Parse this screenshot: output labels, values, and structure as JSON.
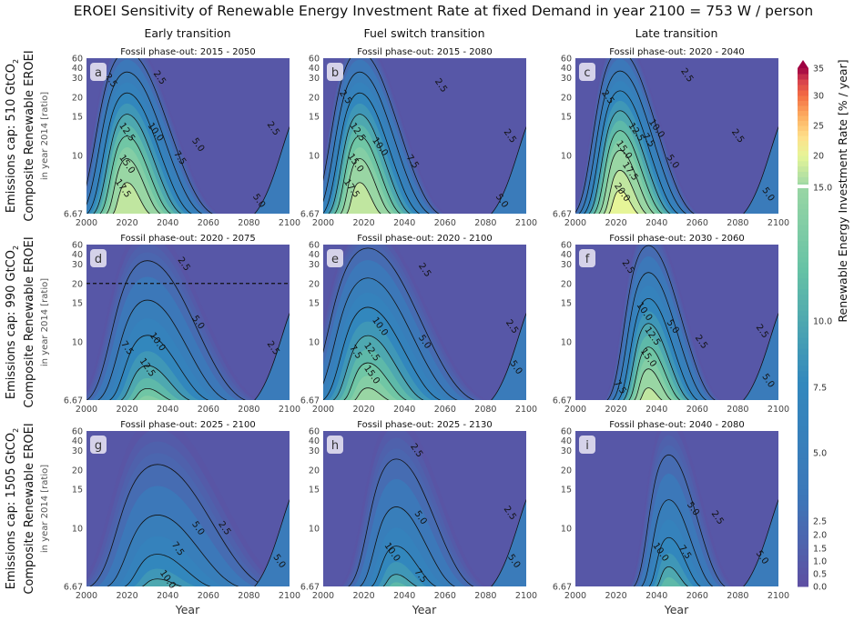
{
  "chart_data": {
    "type": "heatmap",
    "title": "EROEI Sensitivity of Renewable Energy Investment Rate at fixed Demand in year 2100 = 753 W / person",
    "column_titles": [
      "Early transition",
      "Fuel switch transition",
      "Late transition"
    ],
    "row_labels": [
      {
        "cap": "Emissions cap: 510 GtCO",
        "sub": "2",
        "ylabel": "Composite Renewable EROEI",
        "ysub": "in year 2014 [ratio]"
      },
      {
        "cap": "Emissions cap: 990 GtCO",
        "sub": "2",
        "ylabel": "Composite Renewable EROEI",
        "ysub": "in year 2014 [ratio]"
      },
      {
        "cap": "Emissions cap: 1505 GtCO",
        "sub": "2",
        "ylabel": "Composite Renewable EROEI",
        "ysub": "in year 2014 [ratio]"
      }
    ],
    "xlabel": "Year",
    "x_ticks": [
      "2000",
      "2020",
      "2040",
      "2060",
      "2080",
      "2100"
    ],
    "y_ticks": [
      "6.67",
      "10",
      "15",
      "20",
      "30",
      "40",
      "60"
    ],
    "y_tick_values": [
      6.67,
      10,
      15,
      20,
      30,
      40,
      60
    ],
    "xlim": [
      2000,
      2100
    ],
    "ylim": [
      6.67,
      60
    ],
    "yscale": "reciprocal",
    "colorbar": {
      "label": "Renewable Energy Investment Rate [% / year]",
      "ticks": [
        "0.0",
        "0.5",
        "1.0",
        "1.5",
        "2.0",
        "2.5",
        "5.0",
        "7.5",
        "10.0",
        "15.0",
        "20",
        "25",
        "30",
        "35"
      ],
      "position": "right"
    },
    "panels": [
      {
        "letter": "a",
        "subtitle": "Fossil phase-out: 2015 - 2050",
        "peak_year": 2020,
        "peak_value": 20,
        "width_years": 14,
        "decay": 0.9,
        "contour_labels": [
          {
            "text": "2.5",
            "x": 2012,
            "y": 28
          },
          {
            "text": "2.5",
            "x": 2036,
            "y": 30
          },
          {
            "text": "2.5",
            "x": 2092,
            "y": 13
          },
          {
            "text": "5.0",
            "x": 2055,
            "y": 11
          },
          {
            "text": "5.0",
            "x": 2085,
            "y": 7.2
          },
          {
            "text": "7.5",
            "x": 2046,
            "y": 9.8
          },
          {
            "text": "10.0",
            "x": 2034,
            "y": 12.5
          },
          {
            "text": "12.5",
            "x": 2020,
            "y": 12.5
          },
          {
            "text": "15.0",
            "x": 2020,
            "y": 9.3
          },
          {
            "text": "17.5",
            "x": 2018,
            "y": 7.8
          }
        ]
      },
      {
        "letter": "b",
        "subtitle": "Fossil phase-out: 2015 - 2080",
        "peak_year": 2018,
        "peak_value": 20,
        "width_years": 13,
        "decay": 0.9,
        "contour_labels": [
          {
            "text": "2.5",
            "x": 2011,
            "y": 20
          },
          {
            "text": "2.5",
            "x": 2058,
            "y": 25
          },
          {
            "text": "2.5",
            "x": 2092,
            "y": 12
          },
          {
            "text": "5.0",
            "x": 2088,
            "y": 7.2
          },
          {
            "text": "7.5",
            "x": 2044,
            "y": 9.5
          },
          {
            "text": "10.0",
            "x": 2028,
            "y": 10.8
          },
          {
            "text": "12.5",
            "x": 2017,
            "y": 12.5
          },
          {
            "text": "15.0",
            "x": 2016,
            "y": 9.4
          },
          {
            "text": "17.5",
            "x": 2014,
            "y": 7.8
          }
        ]
      },
      {
        "letter": "c",
        "subtitle": "Fossil phase-out: 2020 - 2040",
        "peak_year": 2022,
        "peak_value": 22.5,
        "width_years": 12,
        "decay": 1.0,
        "contour_labels": [
          {
            "text": "2.5",
            "x": 2016,
            "y": 20
          },
          {
            "text": "2.5",
            "x": 2055,
            "y": 32
          },
          {
            "text": "2.5",
            "x": 2080,
            "y": 12
          },
          {
            "text": "5.0",
            "x": 2048,
            "y": 9.5
          },
          {
            "text": "5.0",
            "x": 2095,
            "y": 7.5
          },
          {
            "text": "7.5",
            "x": 2036,
            "y": 11.5
          },
          {
            "text": "10.0",
            "x": 2040,
            "y": 13
          },
          {
            "text": "12.5",
            "x": 2030,
            "y": 12.5
          },
          {
            "text": "15.0",
            "x": 2024,
            "y": 10.5
          },
          {
            "text": "17.5",
            "x": 2027,
            "y": 8.8
          },
          {
            "text": "20.0",
            "x": 2023,
            "y": 7.6
          }
        ]
      },
      {
        "letter": "d",
        "subtitle": "Fossil phase-out: 2020 - 2075",
        "peak_year": 2030,
        "peak_value": 14,
        "width_years": 17,
        "decay": 1.4,
        "dashed_line_y": 20,
        "contour_labels": [
          {
            "text": "2.5",
            "x": 2048,
            "y": 30
          },
          {
            "text": "2.5",
            "x": 2092,
            "y": 9.5
          },
          {
            "text": "5.0",
            "x": 2055,
            "y": 12
          },
          {
            "text": "7.5",
            "x": 2020,
            "y": 9.5
          },
          {
            "text": "10.0",
            "x": 2035,
            "y": 10
          },
          {
            "text": "12.5",
            "x": 2030,
            "y": 8.2
          }
        ]
      },
      {
        "letter": "e",
        "subtitle": "Fossil phase-out: 2020 - 2100",
        "peak_year": 2022,
        "peak_value": 16,
        "width_years": 18,
        "decay": 1.1,
        "contour_labels": [
          {
            "text": "2.5",
            "x": 2050,
            "y": 26
          },
          {
            "text": "2.5",
            "x": 2093,
            "y": 11.5
          },
          {
            "text": "5.0",
            "x": 2095,
            "y": 8.2
          },
          {
            "text": "5.0",
            "x": 2050,
            "y": 10
          },
          {
            "text": "7.5",
            "x": 2016,
            "y": 9.2
          },
          {
            "text": "10.0",
            "x": 2028,
            "y": 11.5
          },
          {
            "text": "12.5",
            "x": 2024,
            "y": 9.2
          },
          {
            "text": "15.0",
            "x": 2024,
            "y": 7.8
          }
        ]
      },
      {
        "letter": "f",
        "subtitle": "Fossil phase-out: 2030 - 2060",
        "peak_year": 2036,
        "peak_value": 19,
        "width_years": 11,
        "decay": 1.2,
        "contour_labels": [
          {
            "text": "2.5",
            "x": 2026,
            "y": 28
          },
          {
            "text": "2.5",
            "x": 2062,
            "y": 10
          },
          {
            "text": "2.5",
            "x": 2092,
            "y": 11
          },
          {
            "text": "5.0",
            "x": 2048,
            "y": 11.5
          },
          {
            "text": "5.0",
            "x": 2095,
            "y": 7.5
          },
          {
            "text": "7.5",
            "x": 2022,
            "y": 7.2
          },
          {
            "text": "10.0",
            "x": 2034,
            "y": 13.5
          },
          {
            "text": "12.5",
            "x": 2038,
            "y": 10.5
          },
          {
            "text": "15.0",
            "x": 2036,
            "y": 8.8
          }
        ]
      },
      {
        "letter": "g",
        "subtitle": "Fossil phase-out: 2025 - 2100",
        "peak_year": 2035,
        "peak_value": 11,
        "width_years": 20,
        "decay": 1.6,
        "contour_labels": [
          {
            "text": "2.5",
            "x": 2068,
            "y": 10
          },
          {
            "text": "5.0",
            "x": 2055,
            "y": 10
          },
          {
            "text": "5.0",
            "x": 2095,
            "y": 7.8
          },
          {
            "text": "7.5",
            "x": 2045,
            "y": 8.5
          },
          {
            "text": "10.0",
            "x": 2040,
            "y": 6.95
          }
        ]
      },
      {
        "letter": "h",
        "subtitle": "Fossil phase-out: 2025 - 2130",
        "peak_year": 2036,
        "peak_value": 11.5,
        "width_years": 14,
        "decay": 1.5,
        "contour_labels": [
          {
            "text": "2.5",
            "x": 2046,
            "y": 30
          },
          {
            "text": "2.5",
            "x": 2092,
            "y": 11.5
          },
          {
            "text": "5.0",
            "x": 2048,
            "y": 11
          },
          {
            "text": "5.0",
            "x": 2094,
            "y": 7.8
          },
          {
            "text": "7.5",
            "x": 2048,
            "y": 7.1
          },
          {
            "text": "10.0",
            "x": 2034,
            "y": 8.3
          }
        ]
      },
      {
        "letter": "i",
        "subtitle": "Fossil phase-out: 2040 - 2080",
        "peak_year": 2046,
        "peak_value": 12.5,
        "width_years": 10,
        "decay": 1.5,
        "contour_labels": [
          {
            "text": "2.5",
            "x": 2070,
            "y": 11
          },
          {
            "text": "5.0",
            "x": 2092,
            "y": 8
          },
          {
            "text": "5.0",
            "x": 2058,
            "y": 12
          },
          {
            "text": "7.5",
            "x": 2054,
            "y": 8.3
          },
          {
            "text": "10.0",
            "x": 2042,
            "y": 8.3
          }
        ]
      }
    ]
  }
}
